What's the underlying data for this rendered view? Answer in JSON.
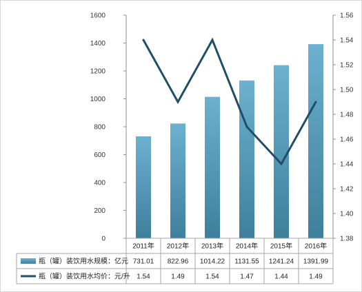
{
  "chart_data": {
    "type": "bar",
    "categories": [
      "2011年",
      "2012年",
      "2013年",
      "2014年",
      "2015年",
      "2016年"
    ],
    "series": [
      {
        "name": "瓶（罐）装饮用水规模：亿元",
        "type": "bar",
        "axis": "left",
        "color": "#4f93b3",
        "values": [
          731.01,
          822.96,
          1014.22,
          1131.55,
          1241.24,
          1391.99
        ],
        "labels": [
          "731.01",
          "822.96",
          "1014.22",
          "1131.55",
          "1241.24",
          "1391.99"
        ]
      },
      {
        "name": "瓶（罐）装饮用水均价：元/升",
        "type": "line",
        "axis": "right",
        "color": "#1f4e66",
        "values": [
          1.54,
          1.49,
          1.54,
          1.47,
          1.44,
          1.49
        ],
        "labels": [
          "1.54",
          "1.49",
          "1.54",
          "1.47",
          "1.44",
          "1.49"
        ]
      }
    ],
    "y_left": {
      "min": 0,
      "max": 1600,
      "ticks": [
        "0",
        "200",
        "400",
        "600",
        "800",
        "1000",
        "1200",
        "1400",
        "1600"
      ]
    },
    "y_right": {
      "min": 1.38,
      "max": 1.56,
      "ticks": [
        "1.38",
        "1.40",
        "1.42",
        "1.44",
        "1.46",
        "1.48",
        "1.50",
        "1.52",
        "1.54",
        "1.56"
      ]
    },
    "title": "",
    "xlabel": "",
    "grid": false,
    "legend": "bottom data table"
  }
}
